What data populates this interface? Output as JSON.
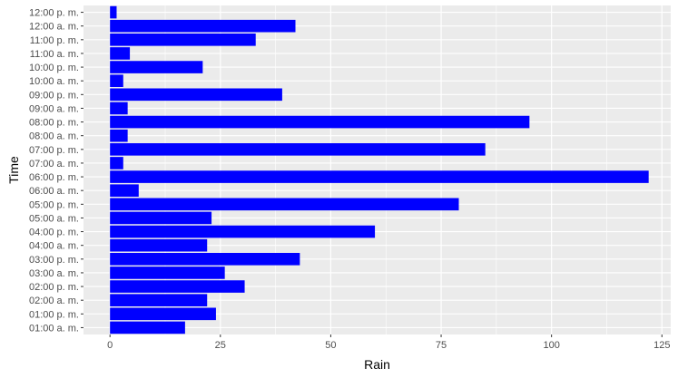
{
  "chart_data": {
    "type": "bar",
    "orientation": "horizontal",
    "xlabel": "Rain",
    "ylabel": "Time",
    "xlim": [
      -6,
      127
    ],
    "x_ticks": [
      0,
      25,
      50,
      75,
      100,
      125
    ],
    "grid": true,
    "bar_color": "#0000ff",
    "panel_color": "#ebebeb",
    "grid_major_color": "#ffffff",
    "categories": [
      "01:00 a. m.",
      "01:00 p. m.",
      "02:00 a. m.",
      "02:00 p. m.",
      "03:00 a. m.",
      "03:00 p. m.",
      "04:00 a. m.",
      "04:00 p. m.",
      "05:00 a. m.",
      "05:00 p. m.",
      "06:00 a. m.",
      "06:00 p. m.",
      "07:00 a. m.",
      "07:00 p. m.",
      "08:00 a. m.",
      "08:00 p. m.",
      "09:00 a. m.",
      "09:00 p. m.",
      "10:00 a. m.",
      "10:00 p. m.",
      "11:00 a. m.",
      "11:00 p. m.",
      "12:00 a. m.",
      "12:00 p. m."
    ],
    "values": [
      17,
      24,
      22,
      30.5,
      26,
      43,
      22,
      60,
      23,
      79,
      6.5,
      122,
      3,
      85,
      4,
      95,
      4,
      39,
      3,
      21,
      4.5,
      33,
      42,
      1.5
    ]
  }
}
